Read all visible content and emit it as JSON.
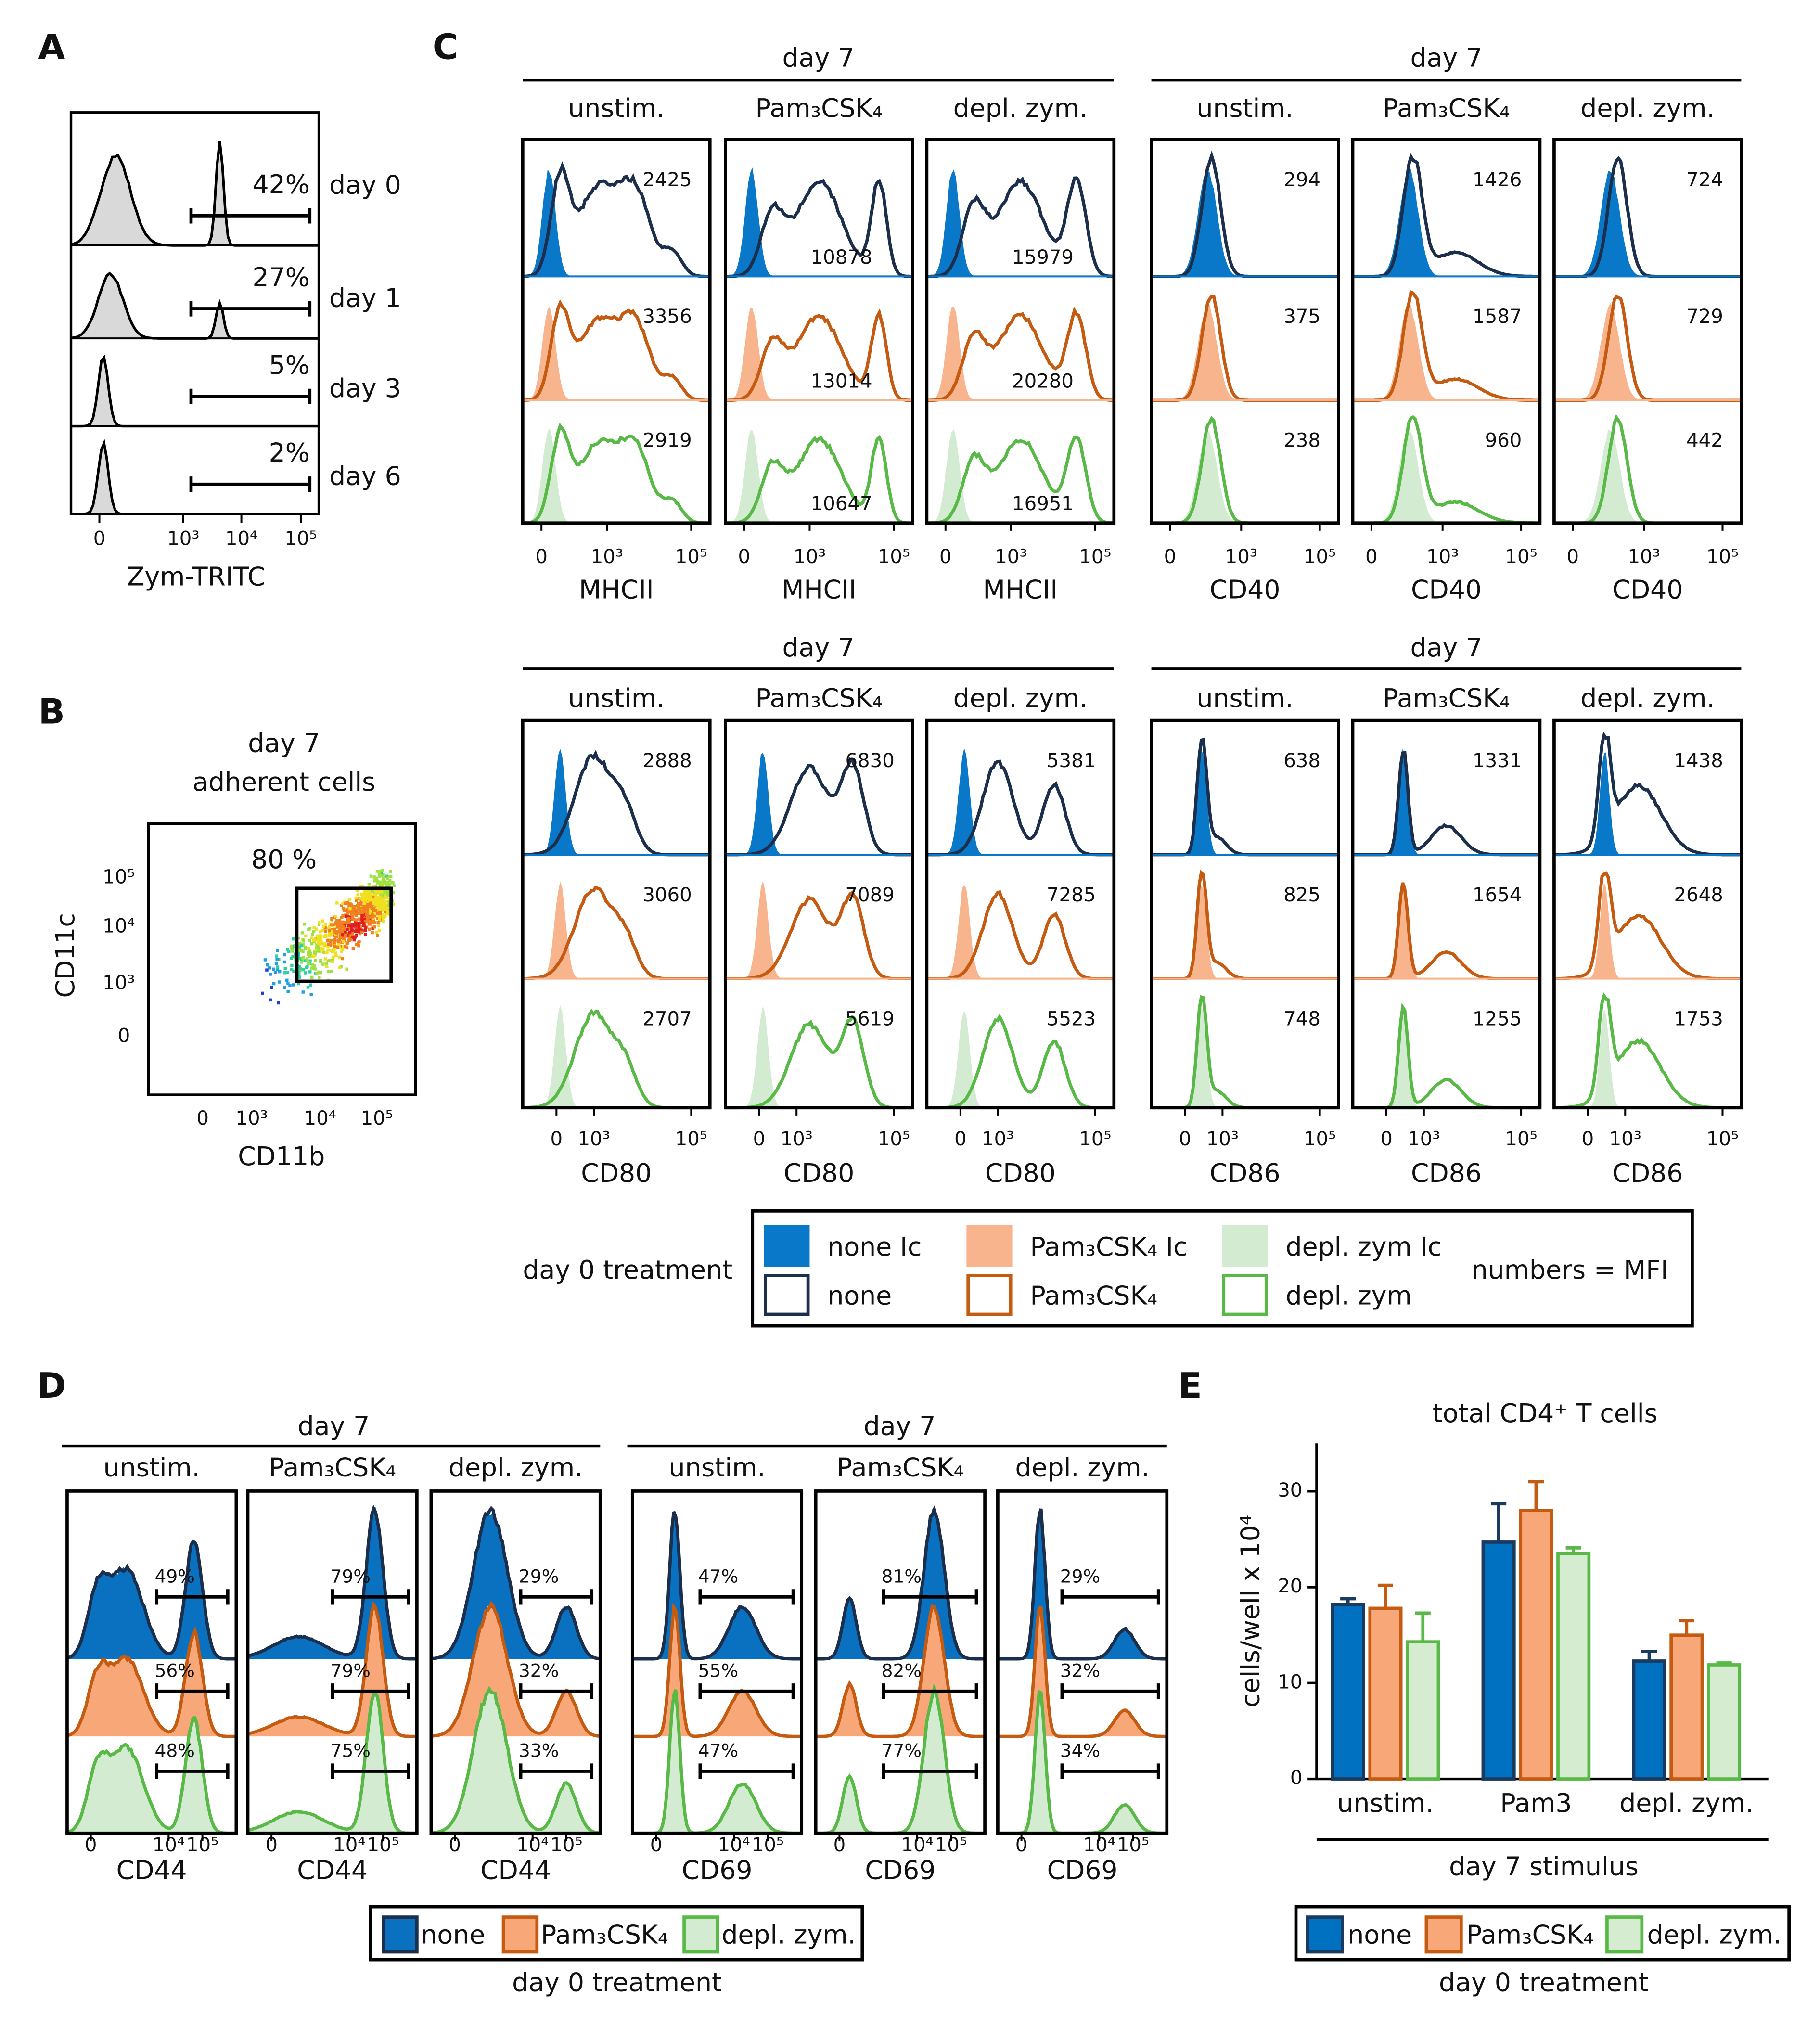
{
  "panel_labels": [
    "A",
    "B",
    "C",
    "D",
    "E"
  ],
  "panel_a": {
    "rows": [
      {
        "label": "day 0",
        "gate": "42%"
      },
      {
        "label": "day 1",
        "gate": "27%"
      },
      {
        "label": "day 3",
        "gate": "5%"
      },
      {
        "label": "day 6",
        "gate": "2%"
      }
    ],
    "ticks": [
      "0",
      "10³",
      "10⁴",
      "10⁵"
    ],
    "axis_label": "Zym-TRITC"
  },
  "panel_b": {
    "title": [
      "day 7",
      "adherent cells"
    ],
    "gate": "80 %",
    "x_label": "CD11b",
    "y_label": "CD11c",
    "x_ticks": [
      "0",
      "10³",
      "10⁴",
      "10⁵"
    ],
    "y_ticks": [
      "10⁵",
      "10⁴",
      "10³",
      "0"
    ]
  },
  "panel_c": {
    "blocks": [
      {
        "groups": [
          {
            "header": "day 7",
            "marker": "MHCII",
            "ticks": [
              "0",
              "10³",
              "10⁵"
            ],
            "columns": [
              {
                "name": "unstim.",
                "mfi": [
                  2425,
                  3356,
                  2919
                ]
              },
              {
                "name": "Pam₃CSK₄",
                "mfi": [
                  10878,
                  13014,
                  10647
                ]
              },
              {
                "name": "depl. zym.",
                "mfi": [
                  15979,
                  20280,
                  16951
                ]
              }
            ]
          },
          {
            "header": "day 7",
            "marker": "CD40",
            "ticks": [
              "0",
              "10³",
              "10⁵"
            ],
            "columns": [
              {
                "name": "unstim.",
                "mfi": [
                  294,
                  375,
                  238
                ]
              },
              {
                "name": "Pam₃CSK₄",
                "mfi": [
                  1426,
                  1587,
                  960
                ]
              },
              {
                "name": "depl. zym.",
                "mfi": [
                  724,
                  729,
                  442
                ]
              }
            ]
          }
        ]
      },
      {
        "groups": [
          {
            "header": "day 7",
            "marker": "CD80",
            "ticks": [
              "0",
              "10³",
              "10⁵"
            ],
            "columns": [
              {
                "name": "unstim.",
                "mfi": [
                  2888,
                  3060,
                  2707
                ]
              },
              {
                "name": "Pam₃CSK₄",
                "mfi": [
                  6830,
                  7089,
                  5619
                ]
              },
              {
                "name": "depl. zym.",
                "mfi": [
                  5381,
                  7285,
                  5523
                ]
              }
            ]
          },
          {
            "header": "day 7",
            "marker": "CD86",
            "ticks": [
              "0",
              "10³",
              "10⁵"
            ],
            "columns": [
              {
                "name": "unstim.",
                "mfi": [
                  638,
                  825,
                  748
                ]
              },
              {
                "name": "Pam₃CSK₄",
                "mfi": [
                  1331,
                  1654,
                  1255
                ]
              },
              {
                "name": "depl. zym.",
                "mfi": [
                  1438,
                  2648,
                  1753
                ]
              }
            ]
          }
        ]
      }
    ],
    "legend": {
      "title": "day 0 treatment",
      "note": "numbers = MFI",
      "items": [
        {
          "name": "none Ic",
          "fill": "#0a78c8",
          "stroke": "#0a78c8"
        },
        {
          "name": "none",
          "fill": "#ffffff",
          "stroke": "#1b2f4c"
        },
        {
          "name": "Pam₃CSK₄ Ic",
          "fill": "#f8b48c",
          "stroke": "#f8b48c"
        },
        {
          "name": "Pam₃CSK₄",
          "fill": "#ffffff",
          "stroke": "#c55a11"
        },
        {
          "name": "depl. zym Ic",
          "fill": "#d3ecd1",
          "stroke": "#d3ecd1"
        },
        {
          "name": "depl. zym",
          "fill": "#ffffff",
          "stroke": "#58b947"
        }
      ]
    }
  },
  "panel_d": {
    "groups": [
      {
        "header": "day 7",
        "marker": "CD44",
        "ticks": [
          "0",
          "10⁴",
          "10⁵"
        ],
        "columns": [
          {
            "name": "unstim.",
            "gates": [
              "49%",
              "56%",
              "48%"
            ]
          },
          {
            "name": "Pam₃CSK₄",
            "gates": [
              "79%",
              "79%",
              "75%"
            ]
          },
          {
            "name": "depl. zym.",
            "gates": [
              "29%",
              "32%",
              "33%"
            ]
          }
        ]
      },
      {
        "header": "day 7",
        "marker": "CD69",
        "ticks": [
          "0",
          "10⁴",
          "10⁵"
        ],
        "columns": [
          {
            "name": "unstim.",
            "gates": [
              "47%",
              "55%",
              "47%"
            ]
          },
          {
            "name": "Pam₃CSK₄",
            "gates": [
              "81%",
              "82%",
              "77%"
            ]
          },
          {
            "name": "depl. zym.",
            "gates": [
              "29%",
              "32%",
              "34%"
            ]
          }
        ]
      }
    ],
    "legend": {
      "title": "day 0 treatment",
      "items": [
        {
          "name": "none",
          "fill": "#0a70c0",
          "stroke": "#1b2f4c"
        },
        {
          "name": "Pam₃CSK₄",
          "fill": "#f8a878",
          "stroke": "#c55a11"
        },
        {
          "name": "depl. zym.",
          "fill": "#d3ecd1",
          "stroke": "#58b947"
        }
      ]
    }
  },
  "chart_data": {
    "type": "bar",
    "title": "total CD4⁺ T cells",
    "y_label": "cells/well x 10⁴",
    "x_label": "day 7 stimulus",
    "categories": [
      "unstim.",
      "Pam3",
      "depl. zym."
    ],
    "series": [
      {
        "name": "none",
        "color": "#0070c0",
        "edge": "#1b3a5f",
        "values": [
          18.2,
          24.7,
          12.3
        ],
        "errors": [
          0.6,
          4.0,
          1.0
        ]
      },
      {
        "name": "Pam₃CSK₄",
        "color": "#f8a878",
        "edge": "#c55a11",
        "values": [
          17.8,
          28.0,
          15.0
        ],
        "errors": [
          2.4,
          3.0,
          1.5
        ]
      },
      {
        "name": "depl. zym.",
        "color": "#d5ecd0",
        "edge": "#58b947",
        "values": [
          14.3,
          23.5,
          11.9
        ],
        "errors": [
          3.0,
          0.6,
          0.2
        ]
      }
    ],
    "ylim": [
      0,
      35
    ],
    "yticks": [
      0,
      10,
      20,
      30
    ],
    "legend_title": "day 0 treatment"
  }
}
